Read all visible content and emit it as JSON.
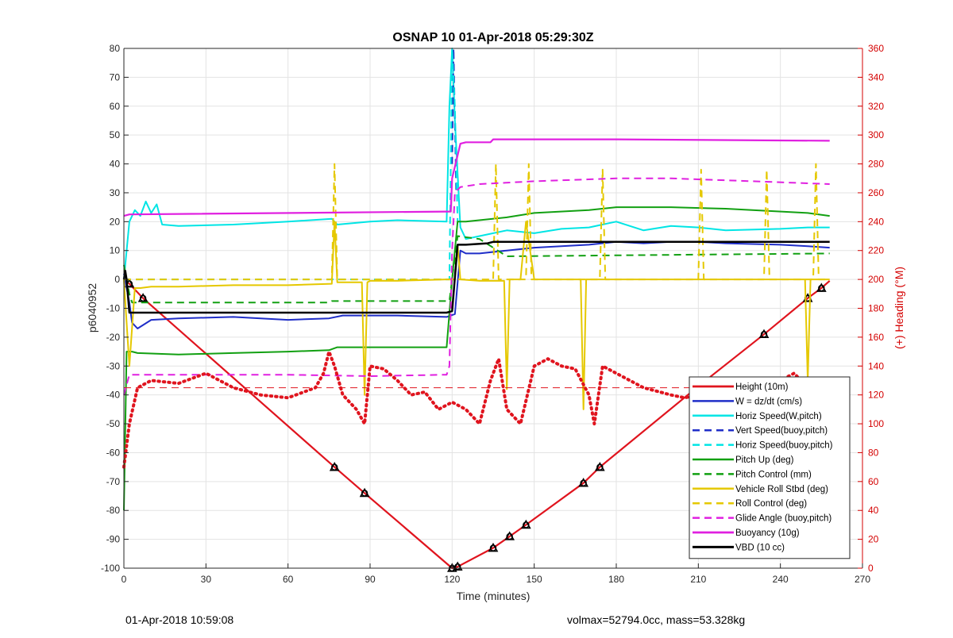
{
  "footer": {
    "left": "01-Apr-2018 10:59:08",
    "right": "volmax=52794.0cc, mass=53.328kg"
  },
  "chart_data": {
    "type": "line",
    "title": "OSNAP 10 01-Apr-2018 05:29:30Z",
    "xlabel": "Time (minutes)",
    "ylabel": "p6040952",
    "y2label": "(+) Heading (°M)",
    "xlim": [
      0,
      270
    ],
    "ylim": [
      -100,
      80
    ],
    "y2lim": [
      0,
      360
    ],
    "xticks": [
      0,
      30,
      60,
      90,
      120,
      150,
      180,
      210,
      240,
      270
    ],
    "yticks": [
      -100,
      -90,
      -80,
      -70,
      -60,
      -50,
      -40,
      -30,
      -20,
      -10,
      0,
      10,
      20,
      30,
      40,
      50,
      60,
      70,
      80
    ],
    "y2ticks": [
      0,
      20,
      40,
      60,
      80,
      100,
      120,
      140,
      160,
      180,
      200,
      220,
      240,
      260,
      280,
      300,
      320,
      340,
      360
    ],
    "grid": true,
    "legend_position": "lower-right",
    "series": [
      {
        "name": "Height (10m)",
        "color": "#e0141e",
        "style": "solid",
        "width": 2.2,
        "x": [
          0,
          1,
          2,
          7,
          77,
          88,
          120,
          122,
          135,
          141,
          147,
          168,
          174,
          210,
          234,
          250,
          255,
          258
        ],
        "y": [
          0,
          -0.8,
          -1.5,
          -6.5,
          -65,
          -74,
          -100,
          -99.5,
          -93,
          -89,
          -85,
          -70.5,
          -65,
          -37,
          -19,
          -6.5,
          -3,
          -0.5
        ],
        "markers_x": [
          2,
          7,
          77,
          88,
          120,
          122,
          135,
          141,
          147,
          168,
          174,
          210,
          234,
          250,
          255
        ]
      },
      {
        "name": "W = dz/dt (cm/s)",
        "color": "#1f2ec8",
        "style": "solid",
        "width": 2,
        "x": [
          0,
          2,
          3,
          5,
          10,
          20,
          40,
          60,
          75,
          80,
          100,
          118,
          121,
          123,
          125,
          130,
          140,
          150,
          160,
          170,
          180,
          190,
          200,
          210,
          220,
          240,
          250,
          258
        ],
        "y": [
          2,
          -8,
          -15,
          -17,
          -14,
          -13.5,
          -13,
          -14,
          -13.5,
          -12.5,
          -12.5,
          -13,
          -12,
          10,
          9,
          9,
          10,
          11,
          11.5,
          12,
          13,
          12.5,
          13,
          13,
          12.5,
          12,
          11.5,
          11
        ]
      },
      {
        "name": "Horiz Speed(W,pitch)",
        "color": "#00e5e5",
        "style": "solid",
        "width": 2,
        "x": [
          0,
          2,
          4,
          6,
          8,
          10,
          12,
          14,
          20,
          40,
          60,
          76,
          78,
          90,
          100,
          118,
          119,
          120,
          121,
          123,
          125,
          130,
          140,
          150,
          160,
          170,
          180,
          190,
          200,
          210,
          220,
          240,
          250,
          258
        ],
        "y": [
          0,
          20,
          24,
          22,
          27,
          23,
          26,
          19,
          18.5,
          19,
          20,
          21,
          19,
          20,
          20.5,
          20,
          60,
          80,
          55,
          18,
          14,
          15,
          17,
          16,
          17.5,
          18,
          20,
          17,
          18.5,
          18,
          17,
          17.5,
          18,
          18
        ]
      },
      {
        "name": "Vert Speed(buoy,pitch)",
        "color": "#1f2ec8",
        "style": "dashed",
        "width": 2,
        "x": [
          120,
          120.5,
          121.5
        ],
        "y": [
          40,
          80,
          30
        ]
      },
      {
        "name": "Horiz Speed(buoy,pitch)",
        "color": "#00e5e5",
        "style": "dashed",
        "width": 2,
        "x": [
          0,
          119,
          120,
          121,
          122
        ],
        "y": [
          0,
          0,
          80,
          60,
          20
        ]
      },
      {
        "name": "Pitch Up (deg)",
        "color": "#12a012",
        "style": "solid",
        "width": 2,
        "x": [
          0,
          1,
          3,
          5,
          20,
          40,
          60,
          75,
          78,
          100,
          118,
          120,
          122,
          125,
          140,
          150,
          170,
          180,
          200,
          220,
          250,
          258
        ],
        "y": [
          -80,
          -25,
          -25,
          -25.5,
          -26,
          -25.5,
          -25,
          -24.5,
          -23.5,
          -23.5,
          -23.5,
          0,
          20,
          20,
          21.5,
          23,
          24,
          25,
          25,
          24.5,
          23,
          22
        ]
      },
      {
        "name": "Pitch Control (mm)",
        "color": "#12a012",
        "style": "dashed",
        "width": 2,
        "x": [
          0,
          2,
          3,
          75,
          76,
          119,
          120,
          122,
          130,
          140,
          258
        ],
        "y": [
          5,
          -5,
          -8,
          -8,
          -7.5,
          -7.5,
          0,
          15,
          14,
          8,
          9
        ]
      },
      {
        "name": "Vehicle Roll Stbd (deg)",
        "color": "#e5c800",
        "style": "solid",
        "width": 2,
        "x": [
          0,
          2,
          4,
          6,
          10,
          20,
          40,
          60,
          76,
          77,
          78,
          87,
          88,
          89,
          90,
          100,
          118,
          121,
          122,
          123,
          130,
          139,
          140,
          141,
          145,
          147,
          150,
          167,
          168,
          169,
          175,
          200,
          210,
          235,
          249,
          250,
          251,
          255,
          258
        ],
        "y": [
          0,
          -30,
          -3,
          -3,
          -2.5,
          -2.5,
          -2,
          -2,
          -1.5,
          20,
          -1,
          -1,
          -40,
          -1,
          -0.5,
          -0.5,
          0,
          0,
          12,
          0,
          -0.5,
          -0.5,
          -38,
          0,
          0,
          20,
          0,
          0,
          -45,
          0,
          0,
          0,
          0,
          0,
          0,
          -35,
          0,
          0,
          0
        ]
      },
      {
        "name": "Roll Control (deg)",
        "color": "#e5c800",
        "style": "dashed",
        "width": 2,
        "x": [
          0,
          76,
          77,
          78,
          120,
          135,
          136,
          137,
          147,
          148,
          149,
          174,
          175,
          176,
          210,
          211,
          212,
          234,
          235,
          236,
          252,
          253,
          254,
          258
        ],
        "y": [
          0,
          0,
          40,
          0,
          0,
          0,
          40,
          0,
          0,
          40,
          0,
          0,
          38,
          0,
          0,
          38,
          0,
          0,
          38,
          0,
          0,
          40,
          0,
          0
        ]
      },
      {
        "name": "Glide Angle (buoy,pitch)",
        "color": "#e020e0",
        "style": "dashed",
        "width": 2,
        "x": [
          0,
          2,
          4,
          20,
          60,
          90,
          118,
          119,
          120,
          121,
          123,
          130,
          150,
          180,
          200,
          230,
          258
        ],
        "y": [
          -40,
          -33,
          -33,
          -33,
          -33,
          -33.5,
          -33,
          -30,
          10,
          30,
          32,
          33,
          34,
          35,
          35,
          34,
          33
        ]
      },
      {
        "name": "Buoyancy (10g)",
        "color": "#e020e0",
        "style": "solid",
        "width": 2.2,
        "x": [
          0,
          2,
          118,
          119.5,
          120,
          123,
          125,
          134,
          135,
          180,
          258
        ],
        "y": [
          22,
          22.5,
          23.5,
          23.5,
          35,
          47,
          47.5,
          47.5,
          48.5,
          48.5,
          48
        ]
      },
      {
        "name": "VBD (10 cc)",
        "color": "#000000",
        "style": "solid",
        "width": 2.5,
        "x": [
          0,
          0.5,
          1,
          2,
          118,
          120,
          122,
          125,
          133,
          135,
          258
        ],
        "y": [
          0,
          3,
          0,
          -11.5,
          -11.5,
          -11,
          12,
          12,
          12.5,
          13,
          13
        ]
      },
      {
        "name": "Heading (right axis)",
        "color": "#e0141e",
        "style": "dotted",
        "axis": "y2",
        "legend": false,
        "x": [
          0,
          2,
          5,
          10,
          20,
          30,
          40,
          50,
          60,
          70,
          73,
          75,
          77,
          80,
          85,
          88,
          90,
          95,
          100,
          105,
          110,
          115,
          120,
          125,
          130,
          134,
          137,
          140,
          145,
          150,
          155,
          160,
          165,
          170,
          172,
          175,
          180,
          185,
          190,
          200,
          205,
          210,
          220,
          230,
          240,
          245,
          250,
          258
        ],
        "y": [
          70,
          100,
          125,
          130,
          128,
          135,
          125,
          120,
          118,
          125,
          135,
          150,
          140,
          120,
          110,
          100,
          140,
          138,
          130,
          120,
          122,
          110,
          115,
          110,
          100,
          130,
          145,
          110,
          100,
          140,
          145,
          140,
          138,
          120,
          100,
          140,
          135,
          130,
          125,
          120,
          118,
          120,
          115,
          120,
          130,
          135,
          125,
          120
        ]
      },
      {
        "name": "Heading target (right axis)",
        "color": "#e0141e",
        "style": "dashed",
        "axis": "y2",
        "legend": false,
        "x": [
          0,
          258
        ],
        "y": [
          125,
          125
        ]
      }
    ]
  }
}
